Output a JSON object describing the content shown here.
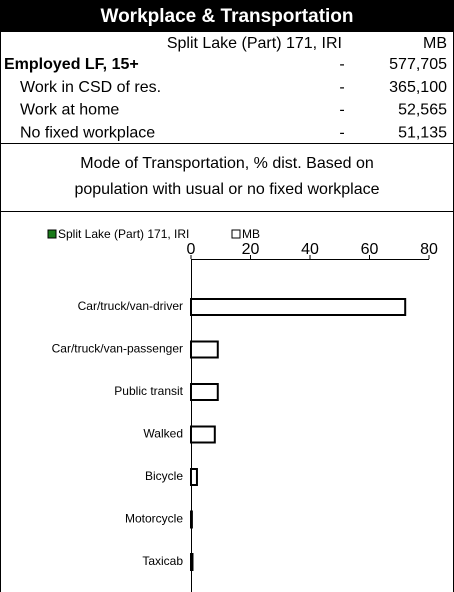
{
  "table": {
    "title": "Workplace & Transportation",
    "columns": [
      "Split Lake (Part) 171, IRI",
      "MB"
    ],
    "rows": [
      [
        "Employed LF, 15+",
        "-",
        "577,705"
      ],
      [
        "Work in CSD of res.",
        "-",
        "365,100"
      ],
      [
        "Work at home",
        "-",
        "52,565"
      ],
      [
        "No fixed workplace",
        "-",
        "51,135"
      ]
    ],
    "note": [
      "Mode of Transportation, % dist. Based on",
      "population with usual or no fixed workplace"
    ]
  },
  "chart_data": {
    "type": "hbar",
    "categories": [
      "Car/truck/van-driver",
      "Car/truck/van-passenger",
      "Public transit",
      "Walked",
      "Bicycle",
      "Motorcycle",
      "Taxicab"
    ],
    "series": [
      {
        "name": "Split Lake (Part) 171, IRI",
        "color": "#1a7a1a",
        "values": [
          null,
          null,
          null,
          null,
          null,
          null,
          null
        ]
      },
      {
        "name": "MB",
        "color": "#ffffff",
        "values": [
          72,
          9,
          9,
          8,
          2,
          0.3,
          0.5
        ]
      }
    ],
    "xlim": [
      0,
      80
    ],
    "xticks": [
      0,
      20,
      40,
      60,
      80
    ]
  }
}
